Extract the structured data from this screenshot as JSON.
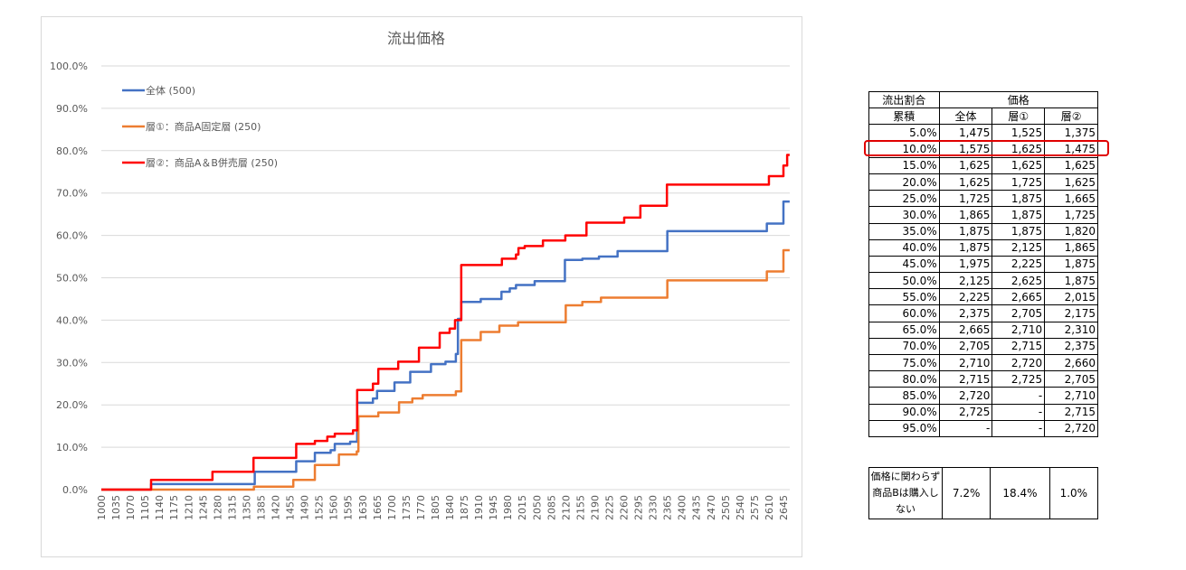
{
  "chart_data": {
    "type": "line",
    "title": "流出価格",
    "xlabel": "",
    "ylabel": "",
    "xlim": [
      1000,
      2660
    ],
    "ylim": [
      0,
      100
    ],
    "y_ticks": [
      "0.0%",
      "10.0%",
      "20.0%",
      "30.0%",
      "40.0%",
      "50.0%",
      "60.0%",
      "70.0%",
      "80.0%",
      "90.0%",
      "100.0%"
    ],
    "x_ticks": [
      "1000",
      "1035",
      "1070",
      "1105",
      "1140",
      "1175",
      "1210",
      "1245",
      "1280",
      "1315",
      "1350",
      "1385",
      "1420",
      "1455",
      "1490",
      "1525",
      "1560",
      "1595",
      "1630",
      "1665",
      "1700",
      "1735",
      "1770",
      "1805",
      "1840",
      "1875",
      "1910",
      "1945",
      "1980",
      "2015",
      "2050",
      "2085",
      "2120",
      "2155",
      "2190",
      "2225",
      "2260",
      "2295",
      "2330",
      "2365",
      "2400",
      "2435",
      "2470",
      "2505",
      "2540",
      "2575",
      "2610",
      "2645"
    ],
    "grid": true,
    "legend_position": "top-left",
    "series": [
      {
        "name": "全体 (500)",
        "color": "#4472c4",
        "steps": [
          [
            1000,
            0
          ],
          [
            1120,
            1.3
          ],
          [
            1370,
            4.2
          ],
          [
            1470,
            6.7
          ],
          [
            1515,
            8.7
          ],
          [
            1553,
            9.3
          ],
          [
            1563,
            10.8
          ],
          [
            1600,
            11.3
          ],
          [
            1617,
            20.5
          ],
          [
            1655,
            21.5
          ],
          [
            1665,
            23.3
          ],
          [
            1707,
            25.3
          ],
          [
            1745,
            27.8
          ],
          [
            1795,
            29.6
          ],
          [
            1830,
            30.2
          ],
          [
            1855,
            32
          ],
          [
            1860,
            40.3
          ],
          [
            1868,
            44.3
          ],
          [
            1915,
            45
          ],
          [
            1965,
            46.7
          ],
          [
            1985,
            47.5
          ],
          [
            2000,
            48.3
          ],
          [
            2045,
            49.2
          ],
          [
            2118,
            54.2
          ],
          [
            2160,
            54.5
          ],
          [
            2200,
            55
          ],
          [
            2245,
            56.3
          ],
          [
            2365,
            61
          ],
          [
            2605,
            62.8
          ],
          [
            2645,
            68
          ]
        ]
      },
      {
        "name": "層①：商品A固定層 (250)",
        "color": "#ed7d31",
        "steps": [
          [
            1000,
            0
          ],
          [
            1368,
            0.7
          ],
          [
            1463,
            2.3
          ],
          [
            1515,
            5.8
          ],
          [
            1573,
            8.3
          ],
          [
            1616,
            9
          ],
          [
            1620,
            17.3
          ],
          [
            1668,
            18.2
          ],
          [
            1718,
            20.6
          ],
          [
            1750,
            21.5
          ],
          [
            1775,
            22.3
          ],
          [
            1855,
            23.2
          ],
          [
            1868,
            35.3
          ],
          [
            1915,
            37.2
          ],
          [
            1960,
            38.7
          ],
          [
            2005,
            39.5
          ],
          [
            2120,
            43.5
          ],
          [
            2160,
            44.3
          ],
          [
            2205,
            45.3
          ],
          [
            2365,
            49.4
          ],
          [
            2605,
            51.5
          ],
          [
            2645,
            56.5
          ]
        ]
      },
      {
        "name": "層②：商品A＆B併売層 (250)",
        "color": "#ff0000",
        "steps": [
          [
            1000,
            0
          ],
          [
            1120,
            2.3
          ],
          [
            1268,
            4.2
          ],
          [
            1367,
            7.5
          ],
          [
            1470,
            10.8
          ],
          [
            1515,
            11.5
          ],
          [
            1545,
            12.5
          ],
          [
            1563,
            13.2
          ],
          [
            1607,
            14
          ],
          [
            1617,
            23.5
          ],
          [
            1655,
            25
          ],
          [
            1668,
            28.5
          ],
          [
            1716,
            30.2
          ],
          [
            1766,
            33.5
          ],
          [
            1816,
            37
          ],
          [
            1840,
            38
          ],
          [
            1853,
            40
          ],
          [
            1868,
            53
          ],
          [
            1966,
            54.5
          ],
          [
            2000,
            55.5
          ],
          [
            2006,
            57
          ],
          [
            2021,
            57.5
          ],
          [
            2065,
            58.8
          ],
          [
            2119,
            60
          ],
          [
            2170,
            63
          ],
          [
            2261,
            64.2
          ],
          [
            2300,
            67
          ],
          [
            2364,
            72
          ],
          [
            2610,
            74
          ],
          [
            2645,
            76.5
          ],
          [
            2654,
            79
          ]
        ]
      }
    ]
  },
  "price_table": {
    "header_left_top": "流出割合",
    "header_left_bottom": "累積",
    "header_group": "価格",
    "columns": [
      "全体",
      "層①",
      "層②"
    ],
    "rows": [
      [
        "5.0%",
        "1,475",
        "1,525",
        "1,375"
      ],
      [
        "10.0%",
        "1,575",
        "1,625",
        "1,475"
      ],
      [
        "15.0%",
        "1,625",
        "1,625",
        "1,625"
      ],
      [
        "20.0%",
        "1,625",
        "1,725",
        "1,625"
      ],
      [
        "25.0%",
        "1,725",
        "1,875",
        "1,665"
      ],
      [
        "30.0%",
        "1,865",
        "1,875",
        "1,725"
      ],
      [
        "35.0%",
        "1,875",
        "1,875",
        "1,820"
      ],
      [
        "40.0%",
        "1,875",
        "2,125",
        "1,865"
      ],
      [
        "45.0%",
        "1,975",
        "2,225",
        "1,875"
      ],
      [
        "50.0%",
        "2,125",
        "2,625",
        "1,875"
      ],
      [
        "55.0%",
        "2,225",
        "2,665",
        "2,015"
      ],
      [
        "60.0%",
        "2,375",
        "2,705",
        "2,175"
      ],
      [
        "65.0%",
        "2,665",
        "2,710",
        "2,310"
      ],
      [
        "70.0%",
        "2,705",
        "2,715",
        "2,375"
      ],
      [
        "75.0%",
        "2,710",
        "2,720",
        "2,660"
      ],
      [
        "80.0%",
        "2,715",
        "2,725",
        "2,705"
      ],
      [
        "85.0%",
        "2,720",
        "-",
        "2,710"
      ],
      [
        "90.0%",
        "2,725",
        "-",
        "2,715"
      ],
      [
        "95.0%",
        "-",
        "-",
        "2,720"
      ]
    ],
    "highlight_color": "#e00000"
  },
  "no_b_table": {
    "label": "価格に関わらず商品Bは購入しない",
    "values": [
      "7.2%",
      "18.4%",
      "1.0%"
    ]
  }
}
